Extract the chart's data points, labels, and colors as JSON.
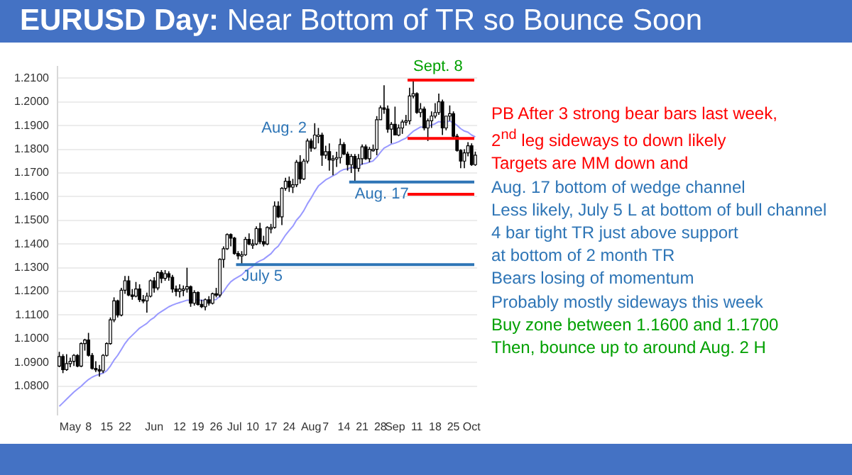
{
  "chart_data": {
    "type": "candlestick",
    "title": "EURUSD Day: Near Bottom of TR so Bounce Soon",
    "categories": [
      null,
      null,
      null,
      "May",
      null,
      null,
      null,
      null,
      "8",
      null,
      null,
      null,
      null,
      "15",
      null,
      null,
      null,
      null,
      "22",
      null,
      null,
      null,
      null,
      null,
      null,
      null,
      "Jun",
      null,
      null,
      null,
      null,
      null,
      null,
      "12",
      null,
      null,
      null,
      null,
      "19",
      null,
      null,
      null,
      null,
      "26",
      null,
      null,
      null,
      null,
      "Jul",
      null,
      null,
      null,
      null,
      "10",
      null,
      null,
      null,
      null,
      "17",
      null,
      null,
      null,
      null,
      "24",
      null,
      null,
      null,
      null,
      null,
      "Aug",
      null,
      null,
      null,
      "7",
      null,
      null,
      null,
      null,
      "14",
      null,
      null,
      null,
      null,
      "21",
      null,
      null,
      null,
      null,
      "28",
      null,
      null,
      null,
      "Sep",
      null,
      null,
      null,
      null,
      null,
      "11",
      null,
      null,
      null,
      null,
      "18",
      null,
      null,
      null,
      null,
      "25",
      null,
      null,
      null,
      null,
      "Oct",
      null
    ],
    "ohlc": [
      [
        1.0885,
        1.0945,
        1.088,
        1.0925
      ],
      [
        1.0925,
        1.0935,
        1.0855,
        1.087
      ],
      [
        1.087,
        1.0935,
        1.0865,
        1.0895
      ],
      [
        1.0895,
        1.092,
        1.088,
        1.0905
      ],
      [
        1.0905,
        1.0935,
        1.0885,
        1.093
      ],
      [
        1.093,
        1.0935,
        1.088,
        1.0885
      ],
      [
        1.0885,
        1.0985,
        1.088,
        1.098
      ],
      [
        1.098,
        1.1,
        1.095,
        1.0995
      ],
      [
        1.0995,
        1.1025,
        1.0925,
        1.093
      ],
      [
        1.093,
        1.094,
        1.087,
        1.0875
      ],
      [
        1.0875,
        1.0905,
        1.086,
        1.087
      ],
      [
        1.087,
        1.089,
        1.084,
        1.0865
      ],
      [
        1.0865,
        1.0935,
        1.0855,
        1.093
      ],
      [
        1.093,
        1.0985,
        1.0925,
        1.098
      ],
      [
        1.098,
        1.109,
        1.0975,
        1.108
      ],
      [
        1.108,
        1.1175,
        1.107,
        1.116
      ],
      [
        1.116,
        1.1165,
        1.109,
        1.11
      ],
      [
        1.11,
        1.1215,
        1.1095,
        1.1205
      ],
      [
        1.1205,
        1.1265,
        1.119,
        1.1245
      ],
      [
        1.1245,
        1.1265,
        1.118,
        1.1185
      ],
      [
        1.1185,
        1.121,
        1.1165,
        1.118
      ],
      [
        1.118,
        1.124,
        1.1175,
        1.121
      ],
      [
        1.121,
        1.123,
        1.1155,
        1.1165
      ],
      [
        1.1165,
        1.1185,
        1.115,
        1.116
      ],
      [
        1.116,
        1.1195,
        1.111,
        1.118
      ],
      [
        1.118,
        1.125,
        1.1175,
        1.1245
      ],
      [
        1.1245,
        1.126,
        1.1195,
        1.1215
      ],
      [
        1.1215,
        1.1285,
        1.1205,
        1.128
      ],
      [
        1.128,
        1.129,
        1.1235,
        1.1255
      ],
      [
        1.1255,
        1.129,
        1.1245,
        1.1275
      ],
      [
        1.1275,
        1.1285,
        1.1245,
        1.126
      ],
      [
        1.126,
        1.127,
        1.1195,
        1.121
      ],
      [
        1.121,
        1.1225,
        1.118,
        1.12
      ],
      [
        1.12,
        1.123,
        1.1175,
        1.121
      ],
      [
        1.121,
        1.1225,
        1.118,
        1.121
      ],
      [
        1.121,
        1.13,
        1.1195,
        1.122
      ],
      [
        1.122,
        1.1225,
        1.1135,
        1.115
      ],
      [
        1.115,
        1.1205,
        1.114,
        1.1195
      ],
      [
        1.1195,
        1.12,
        1.114,
        1.1145
      ],
      [
        1.1145,
        1.1165,
        1.113,
        1.1135
      ],
      [
        1.1135,
        1.117,
        1.112,
        1.1165
      ],
      [
        1.1165,
        1.118,
        1.114,
        1.115
      ],
      [
        1.115,
        1.1195,
        1.1145,
        1.119
      ],
      [
        1.119,
        1.1215,
        1.1175,
        1.1185
      ],
      [
        1.1185,
        1.134,
        1.1175,
        1.1335
      ],
      [
        1.1335,
        1.139,
        1.13,
        1.138
      ],
      [
        1.138,
        1.1445,
        1.1375,
        1.144
      ],
      [
        1.144,
        1.1445,
        1.139,
        1.1425
      ],
      [
        1.1425,
        1.143,
        1.1355,
        1.136
      ],
      [
        1.136,
        1.137,
        1.1335,
        1.135
      ],
      [
        1.135,
        1.137,
        1.1313,
        1.1355
      ],
      [
        1.1355,
        1.143,
        1.135,
        1.142
      ],
      [
        1.142,
        1.1445,
        1.1395,
        1.14
      ],
      [
        1.14,
        1.142,
        1.138,
        1.14
      ],
      [
        1.14,
        1.1475,
        1.1395,
        1.1465
      ],
      [
        1.1465,
        1.149,
        1.14,
        1.141
      ],
      [
        1.141,
        1.1435,
        1.139,
        1.14
      ],
      [
        1.14,
        1.1475,
        1.1395,
        1.147
      ],
      [
        1.147,
        1.1485,
        1.1445,
        1.147
      ],
      [
        1.147,
        1.158,
        1.1465,
        1.156
      ],
      [
        1.156,
        1.158,
        1.151,
        1.1515
      ],
      [
        1.1515,
        1.164,
        1.148,
        1.1635
      ],
      [
        1.1635,
        1.168,
        1.1625,
        1.1665
      ],
      [
        1.1665,
        1.1685,
        1.162,
        1.164
      ],
      [
        1.164,
        1.1675,
        1.1615,
        1.165
      ],
      [
        1.165,
        1.1755,
        1.164,
        1.1745
      ],
      [
        1.1745,
        1.1775,
        1.1655,
        1.1675
      ],
      [
        1.1675,
        1.176,
        1.167,
        1.175
      ],
      [
        1.175,
        1.1845,
        1.174,
        1.1835
      ],
      [
        1.1835,
        1.1845,
        1.179,
        1.1805
      ],
      [
        1.1805,
        1.191,
        1.18,
        1.186
      ],
      [
        1.186,
        1.189,
        1.1825,
        1.186
      ],
      [
        1.186,
        1.187,
        1.173,
        1.1775
      ],
      [
        1.1775,
        1.1815,
        1.176,
        1.179
      ],
      [
        1.179,
        1.1825,
        1.171,
        1.1755
      ],
      [
        1.1755,
        1.1775,
        1.169,
        1.176
      ],
      [
        1.176,
        1.179,
        1.1725,
        1.1765
      ],
      [
        1.1765,
        1.1845,
        1.174,
        1.182
      ],
      [
        1.182,
        1.183,
        1.1775,
        1.178
      ],
      [
        1.178,
        1.179,
        1.171,
        1.1735
      ],
      [
        1.1735,
        1.178,
        1.17,
        1.177
      ],
      [
        1.177,
        1.178,
        1.1662,
        1.172
      ],
      [
        1.172,
        1.178,
        1.1705,
        1.176
      ],
      [
        1.176,
        1.182,
        1.1735,
        1.181
      ],
      [
        1.181,
        1.182,
        1.1755,
        1.176
      ],
      [
        1.176,
        1.181,
        1.1745,
        1.18
      ],
      [
        1.18,
        1.182,
        1.179,
        1.18
      ],
      [
        1.18,
        1.194,
        1.1775,
        1.1925
      ],
      [
        1.1925,
        1.1985,
        1.1925,
        1.1975
      ],
      [
        1.1975,
        1.207,
        1.195,
        1.197
      ],
      [
        1.197,
        1.1985,
        1.187,
        1.1885
      ],
      [
        1.1885,
        1.1915,
        1.1825,
        1.1905
      ],
      [
        1.1905,
        1.198,
        1.186,
        1.186
      ],
      [
        1.186,
        1.1905,
        1.1855,
        1.189
      ],
      [
        1.189,
        1.1925,
        1.1865,
        1.1915
      ],
      [
        1.1915,
        1.1945,
        1.19,
        1.192
      ],
      [
        1.192,
        1.206,
        1.1905,
        1.2025
      ],
      [
        1.2025,
        1.2092,
        1.2015,
        1.2035
      ],
      [
        1.2035,
        1.204,
        1.195,
        1.1955
      ],
      [
        1.1955,
        1.1995,
        1.1935,
        1.197
      ],
      [
        1.197,
        1.198,
        1.188,
        1.189
      ],
      [
        1.189,
        1.193,
        1.1835,
        1.192
      ],
      [
        1.192,
        1.196,
        1.189,
        1.194
      ],
      [
        1.194,
        1.1995,
        1.193,
        1.1955
      ],
      [
        1.1955,
        1.2035,
        1.1945,
        1.2
      ],
      [
        1.2,
        1.201,
        1.186,
        1.189
      ],
      [
        1.189,
        1.194,
        1.188,
        1.194
      ],
      [
        1.194,
        1.1985,
        1.192,
        1.195
      ],
      [
        1.195,
        1.196,
        1.185,
        1.1855
      ],
      [
        1.1855,
        1.1865,
        1.179,
        1.1795
      ],
      [
        1.1795,
        1.18,
        1.172,
        1.175
      ],
      [
        1.175,
        1.18,
        1.172,
        1.1785
      ],
      [
        1.1785,
        1.183,
        1.177,
        1.1815
      ],
      [
        1.1815,
        1.1825,
        1.173,
        1.1735
      ],
      [
        1.1735,
        1.179,
        1.173,
        1.1775
      ]
    ],
    "series": [
      {
        "type": "line",
        "color": "#9999ff",
        "values": [
          1.0715,
          1.073,
          1.0745,
          1.076,
          1.0775,
          1.0788,
          1.08,
          1.0815,
          1.0828,
          1.0838,
          1.0845,
          1.085,
          1.0855,
          1.0865,
          1.0885,
          1.091,
          1.093,
          1.0955,
          1.098,
          1.1,
          1.1015,
          1.103,
          1.1045,
          1.1055,
          1.1065,
          1.108,
          1.109,
          1.1105,
          1.1115,
          1.1125,
          1.1135,
          1.1142,
          1.1148,
          1.1153,
          1.1158,
          1.1163,
          1.1163,
          1.1166,
          1.1164,
          1.1162,
          1.1162,
          1.1161,
          1.1164,
          1.1166,
          1.1181,
          1.1199,
          1.1222,
          1.1241,
          1.1252,
          1.1261,
          1.127,
          1.1285,
          1.1296,
          1.1306,
          1.1321,
          1.1329,
          1.1336,
          1.1348,
          1.1359,
          1.1378,
          1.1391,
          1.1414,
          1.1438,
          1.1457,
          1.1475,
          1.1501,
          1.1518,
          1.1541,
          1.157,
          1.1594,
          1.1621,
          1.1645,
          1.1658,
          1.1671,
          1.1679,
          1.1688,
          1.1696,
          1.1708,
          1.1715,
          1.1717,
          1.1723,
          1.1724,
          1.1729,
          1.1738,
          1.174,
          1.1746,
          1.1751,
          1.1767,
          1.1787,
          1.1805,
          1.1813,
          1.1822,
          1.1826,
          1.1832,
          1.184,
          1.1847,
          1.1862,
          1.1876,
          1.1885,
          1.1894,
          1.1894,
          1.1897,
          1.1902,
          1.1908,
          1.1917,
          1.1914,
          1.1916,
          1.1919,
          1.1912,
          1.1901,
          1.1887,
          1.1877,
          1.1872,
          1.186,
          1.1852
        ]
      }
    ],
    "marker": "none",
    "ylim": [
      1.068,
      1.215
    ],
    "yticks": [
      {
        "value": 1.08,
        "label": "1.0800"
      },
      {
        "value": 1.09,
        "label": "1.0900"
      },
      {
        "value": 1.1,
        "label": "1.1000"
      },
      {
        "value": 1.11,
        "label": "1.1100"
      },
      {
        "value": 1.12,
        "label": "1.1200"
      },
      {
        "value": 1.13,
        "label": "1.1300"
      },
      {
        "value": 1.14,
        "label": "1.1400"
      },
      {
        "value": 1.15,
        "label": "1.1500"
      },
      {
        "value": 1.16,
        "label": "1.1600"
      },
      {
        "value": 1.17,
        "label": "1.1700"
      },
      {
        "value": 1.18,
        "label": "1.1800"
      },
      {
        "value": 1.19,
        "label": "1.1900"
      },
      {
        "value": 1.2,
        "label": "1.2000"
      },
      {
        "value": 1.21,
        "label": "1.2100"
      }
    ],
    "grid": "y",
    "legend": false,
    "ref_lines": [
      {
        "axis": "y",
        "value": 1.2092,
        "label": "Sept. 8",
        "color": "#ff0000"
      },
      {
        "axis": "y",
        "value": 1.1846,
        "color": "#ff0000"
      },
      {
        "axis": "y",
        "value": 1.161,
        "color": "#ff0000"
      },
      {
        "axis": "y",
        "value": 1.1662,
        "label": "Aug. 17",
        "color": "#2e75b6"
      },
      {
        "axis": "y",
        "value": 1.1313,
        "label": "July 5",
        "color": "#2e75b6"
      }
    ],
    "annotations": [
      "Aug. 2",
      "PB After 3 strong bear bars last week,",
      "2$^{nd}$ leg sideways to down likely",
      " Targets are MM down and",
      "Aug. 17 bottom of wedge channel",
      "Less likely, July 5 L at bottom of bull channel",
      "4 bar tight TR just above support",
      "at bottom of 2 month TR",
      "Bears losing of momentum",
      "Probably mostly sideways this week",
      "Buy zone between 1.1600 and 1.1700",
      "Then, bounce up to around Aug. 2 H"
    ]
  }
}
